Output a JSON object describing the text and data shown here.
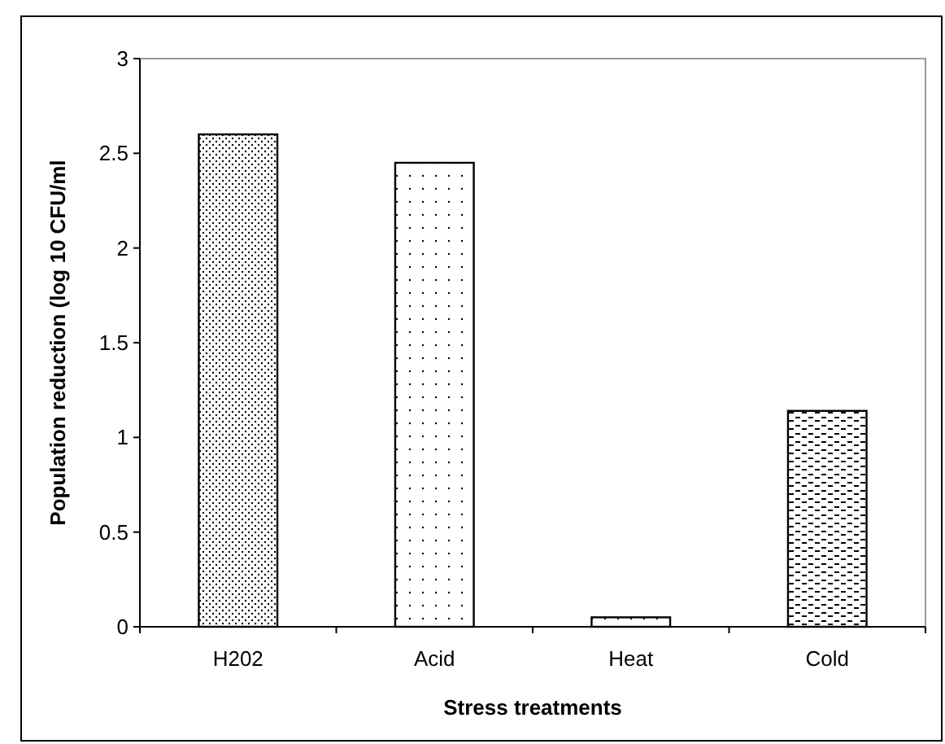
{
  "chart_data": {
    "type": "bar",
    "xlabel": "Stress treatments",
    "ylabel": "Population reduction (log 10 CFU/ml",
    "categories": [
      "H202",
      "Acid",
      "Heat",
      "Cold"
    ],
    "values": [
      2.6,
      2.45,
      0.05,
      1.14
    ],
    "color": "#000000",
    "ylim": [
      0,
      3
    ],
    "yticks": [
      0,
      0.5,
      1,
      1.5,
      2,
      2.5,
      3
    ],
    "grid": false
  }
}
